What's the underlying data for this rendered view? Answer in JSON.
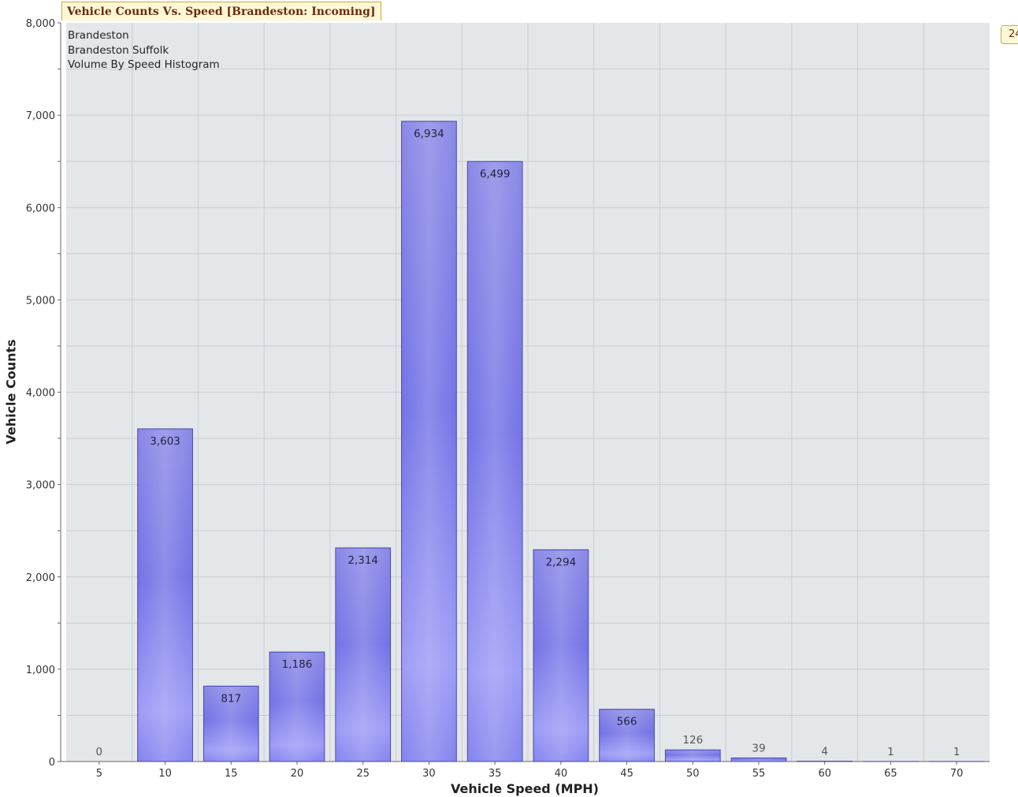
{
  "chart_data": {
    "type": "bar",
    "title": "Vehicle Counts Vs. Speed [Brandeston: Incoming]",
    "subtitle_lines": [
      "Brandeston",
      "Brandeston Suffolk",
      "Volume By Speed Histogram"
    ],
    "corner_tag": "24",
    "xlabel": "Vehicle Speed (MPH)",
    "ylabel": "Vehicle Counts",
    "categories": [
      "5",
      "10",
      "15",
      "20",
      "25",
      "30",
      "35",
      "40",
      "45",
      "50",
      "55",
      "60",
      "65",
      "70"
    ],
    "values": [
      0,
      3603,
      817,
      1186,
      2314,
      6934,
      6499,
      2294,
      566,
      126,
      39,
      4,
      1,
      1
    ],
    "data_labels": [
      "0",
      "3,603",
      "817",
      "1,186",
      "2,314",
      "6,934",
      "6,499",
      "2,294",
      "566",
      "126",
      "39",
      "4",
      "1",
      "1"
    ],
    "ylim": [
      0,
      8000
    ],
    "yticks": [
      0,
      1000,
      2000,
      3000,
      4000,
      5000,
      6000,
      7000,
      8000
    ],
    "ytick_labels": [
      "0",
      "1,000",
      "2,000",
      "3,000",
      "4,000",
      "5,000",
      "6,000",
      "7,000",
      "8,000"
    ],
    "grid": true,
    "colors": {
      "bar_fill": "#7e7de8",
      "bar_edge": "#4a48b0",
      "plot_background": "#e4e7ea",
      "grid": "#c9cdd1"
    }
  }
}
